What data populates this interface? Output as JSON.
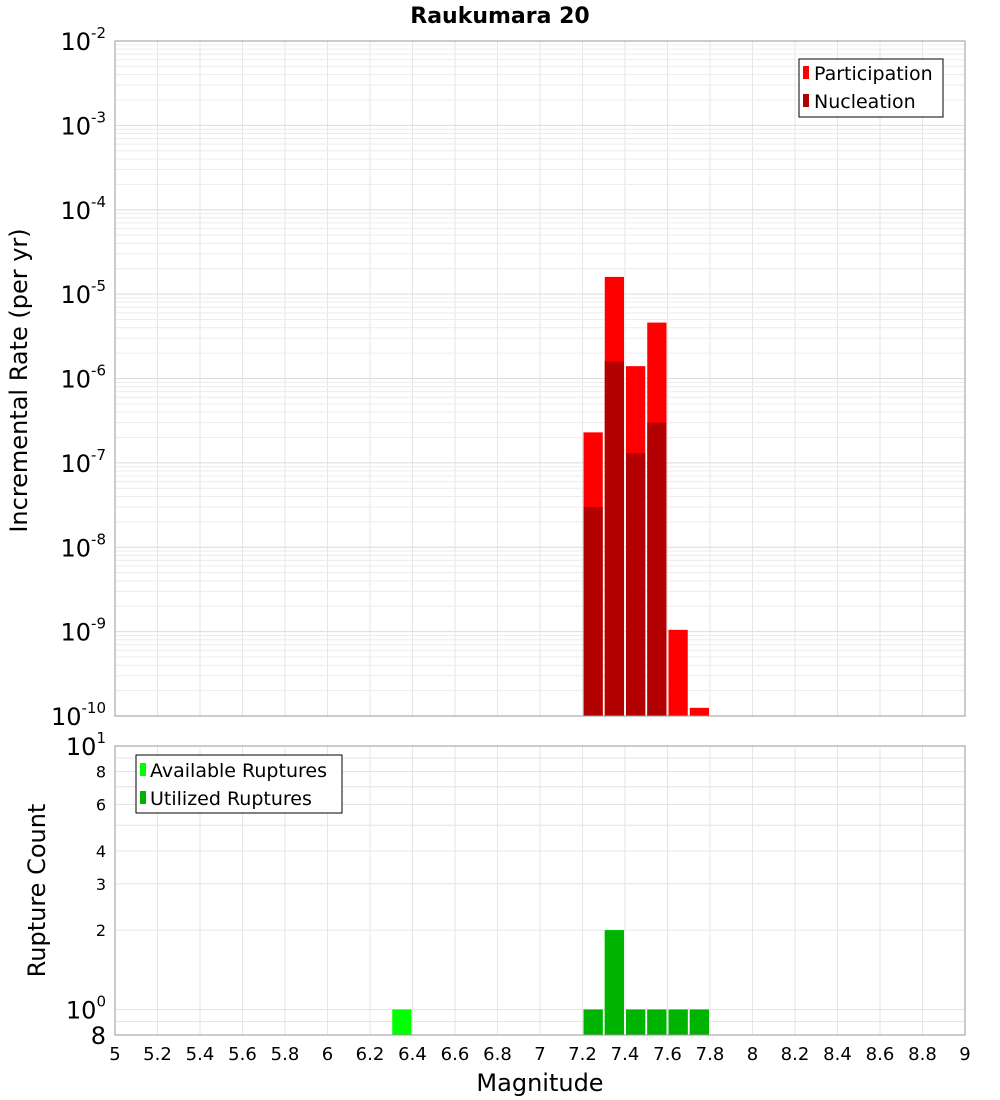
{
  "chart_data": [
    {
      "type": "bar",
      "title": "Raukumara 20",
      "xlabel": "",
      "ylabel": "Incremental Rate (per yr)",
      "y_scale": "log",
      "ylim": [
        1e-10,
        0.01
      ],
      "xlim": [
        5,
        9
      ],
      "bin_width": 0.1,
      "grid": true,
      "legend_position": "top-right",
      "y_tick_labels": [
        {
          "base": "10",
          "exp": "-10"
        },
        {
          "base": "10",
          "exp": "-9"
        },
        {
          "base": "10",
          "exp": "-8"
        },
        {
          "base": "10",
          "exp": "-7"
        },
        {
          "base": "10",
          "exp": "-6"
        },
        {
          "base": "10",
          "exp": "-5"
        },
        {
          "base": "10",
          "exp": "-4"
        },
        {
          "base": "10",
          "exp": "-3"
        },
        {
          "base": "10",
          "exp": "-2"
        }
      ],
      "series": [
        {
          "name": "Participation",
          "color": "#ff0000",
          "x": [
            7.25,
            7.35,
            7.45,
            7.55,
            7.65,
            7.75
          ],
          "values": [
            2.3e-07,
            1.6e-05,
            1.4e-06,
            4.6e-06,
            1.05e-09,
            1.25e-10
          ]
        },
        {
          "name": "Nucleation",
          "color": "#b30000",
          "x": [
            7.25,
            7.35,
            7.45,
            7.55
          ],
          "values": [
            3e-08,
            1.6e-06,
            1.3e-07,
            3e-07
          ]
        }
      ]
    },
    {
      "type": "bar",
      "title": "",
      "xlabel": "Magnitude",
      "ylabel": "Rupture Count",
      "y_scale": "log",
      "ylim": [
        0.8,
        10
      ],
      "xlim": [
        5,
        9
      ],
      "bin_width": 0.1,
      "grid": true,
      "legend_position": "top-left",
      "x_tick_labels": [
        "5",
        "5.2",
        "5.4",
        "5.6",
        "5.8",
        "6",
        "6.2",
        "6.4",
        "6.6",
        "6.8",
        "7",
        "7.2",
        "7.4",
        "7.6",
        "7.8",
        "8",
        "8.2",
        "8.4",
        "8.6",
        "8.8",
        "9"
      ],
      "y_tick_labels": [
        {
          "base": "10",
          "exp": "0",
          "value": 1
        },
        {
          "base": "10",
          "exp": "1",
          "value": 10
        }
      ],
      "y_minor_tick_labels": [
        {
          "label": "8",
          "value": 0.8
        },
        {
          "label": "2",
          "value": 2
        },
        {
          "label": "3",
          "value": 3
        },
        {
          "label": "4",
          "value": 4
        },
        {
          "label": "6",
          "value": 6
        },
        {
          "label": "8",
          "value": 8
        }
      ],
      "series": [
        {
          "name": "Available Ruptures",
          "color": "#00ff00",
          "x": [
            6.35,
            7.25,
            7.35,
            7.45,
            7.55,
            7.65,
            7.75
          ],
          "values": [
            1,
            1,
            2,
            1,
            1,
            1,
            1
          ]
        },
        {
          "name": "Utilized Ruptures",
          "color": "#00b300",
          "x": [
            7.25,
            7.35,
            7.45,
            7.55,
            7.65,
            7.75
          ],
          "values": [
            1,
            2,
            1,
            1,
            1,
            1
          ]
        }
      ]
    }
  ]
}
